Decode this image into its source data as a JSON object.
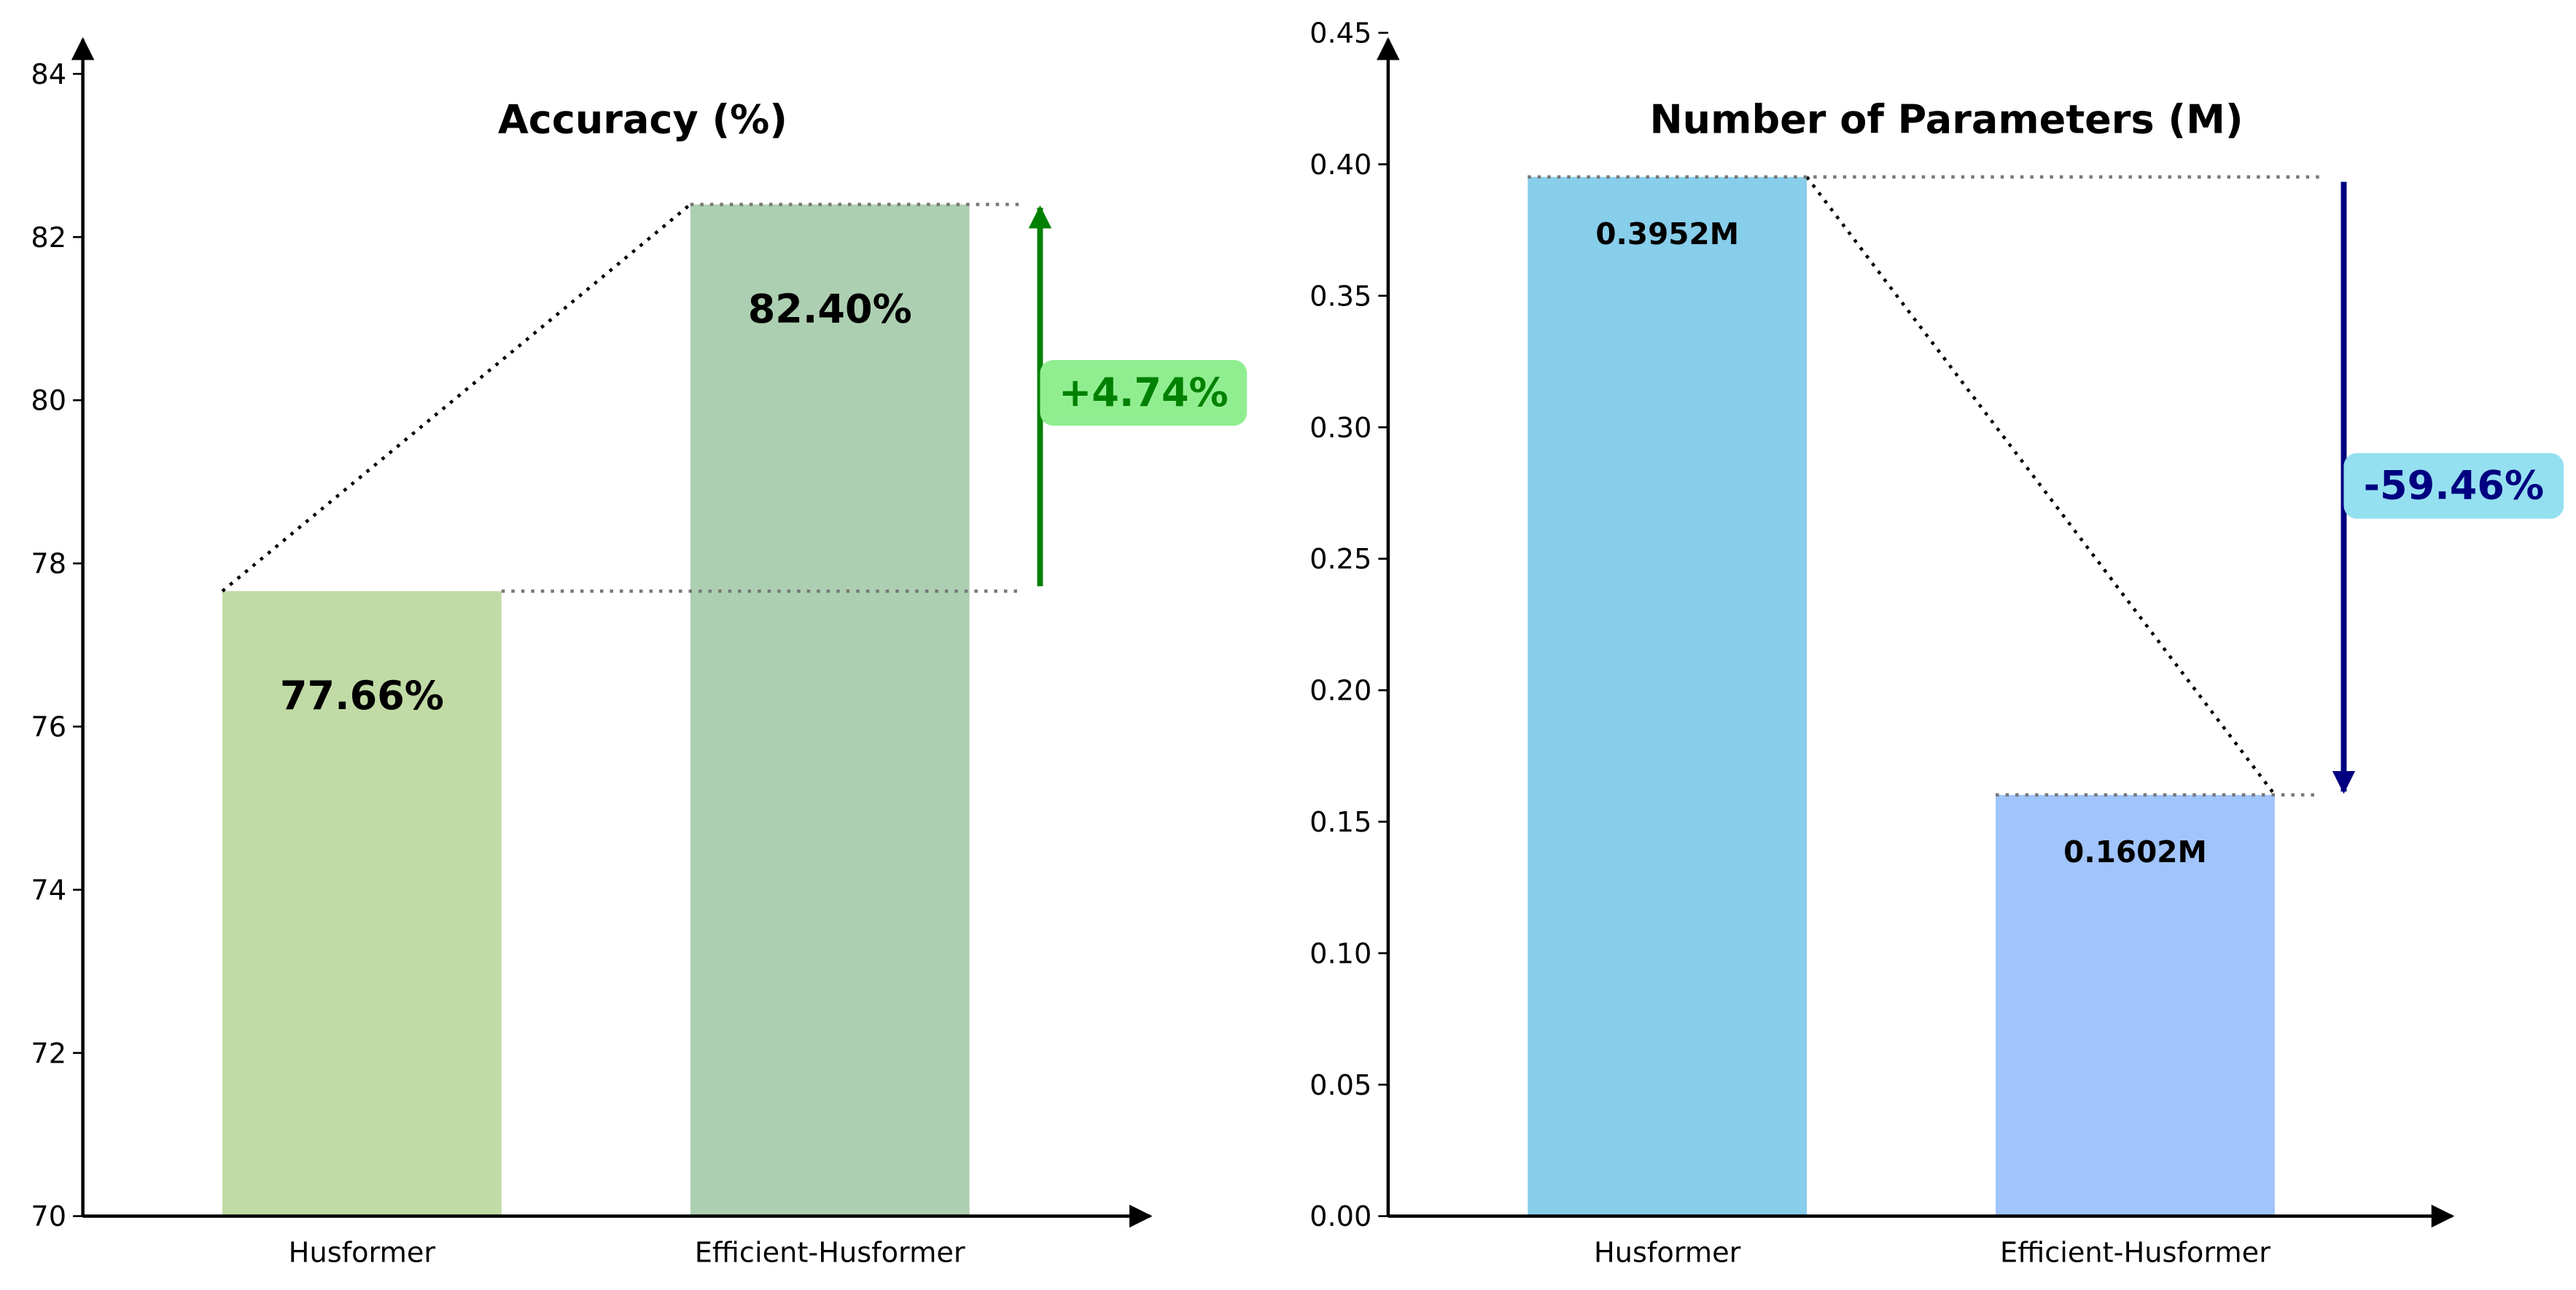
{
  "chart_data": [
    {
      "type": "bar",
      "title": "Accuracy (%)",
      "categories": [
        "Husformer",
        "Efficient-Husformer"
      ],
      "values": [
        77.66,
        82.4
      ],
      "value_labels": [
        "77.66%",
        "82.40%"
      ],
      "colors": [
        "#c1dba6",
        "#adcfb1"
      ],
      "ylim": [
        70,
        84
      ],
      "yticks": [
        "70",
        "72",
        "74",
        "76",
        "78",
        "80",
        "82",
        "84"
      ],
      "ytick_values": [
        70,
        72,
        74,
        76,
        78,
        80,
        82,
        84
      ],
      "grid": false,
      "annotation": {
        "text": "+4.74%",
        "direction": "up",
        "arrow_color": "#008000",
        "text_color": "#008000",
        "box_color": "#90ee90"
      }
    },
    {
      "type": "bar",
      "title": "Number of Parameters (M)",
      "categories": [
        "Husformer",
        "Efficient-Husformer"
      ],
      "values": [
        0.3952,
        0.1602
      ],
      "value_labels": [
        "0.3952M",
        "0.1602M"
      ],
      "colors": [
        "#87ceeb",
        "#a1c4fd"
      ],
      "ylim": [
        0,
        0.45
      ],
      "yticks": [
        "0.00",
        "0.05",
        "0.10",
        "0.15",
        "0.20",
        "0.25",
        "0.30",
        "0.35",
        "0.40",
        "0.45"
      ],
      "ytick_values": [
        0,
        0.05,
        0.1,
        0.15,
        0.2,
        0.25,
        0.3,
        0.35,
        0.4,
        0.45
      ],
      "grid": false,
      "annotation": {
        "text": "-59.46%",
        "direction": "down",
        "arrow_color": "#000080",
        "text_color": "#000080",
        "box_color": "#94e0f0"
      }
    }
  ]
}
